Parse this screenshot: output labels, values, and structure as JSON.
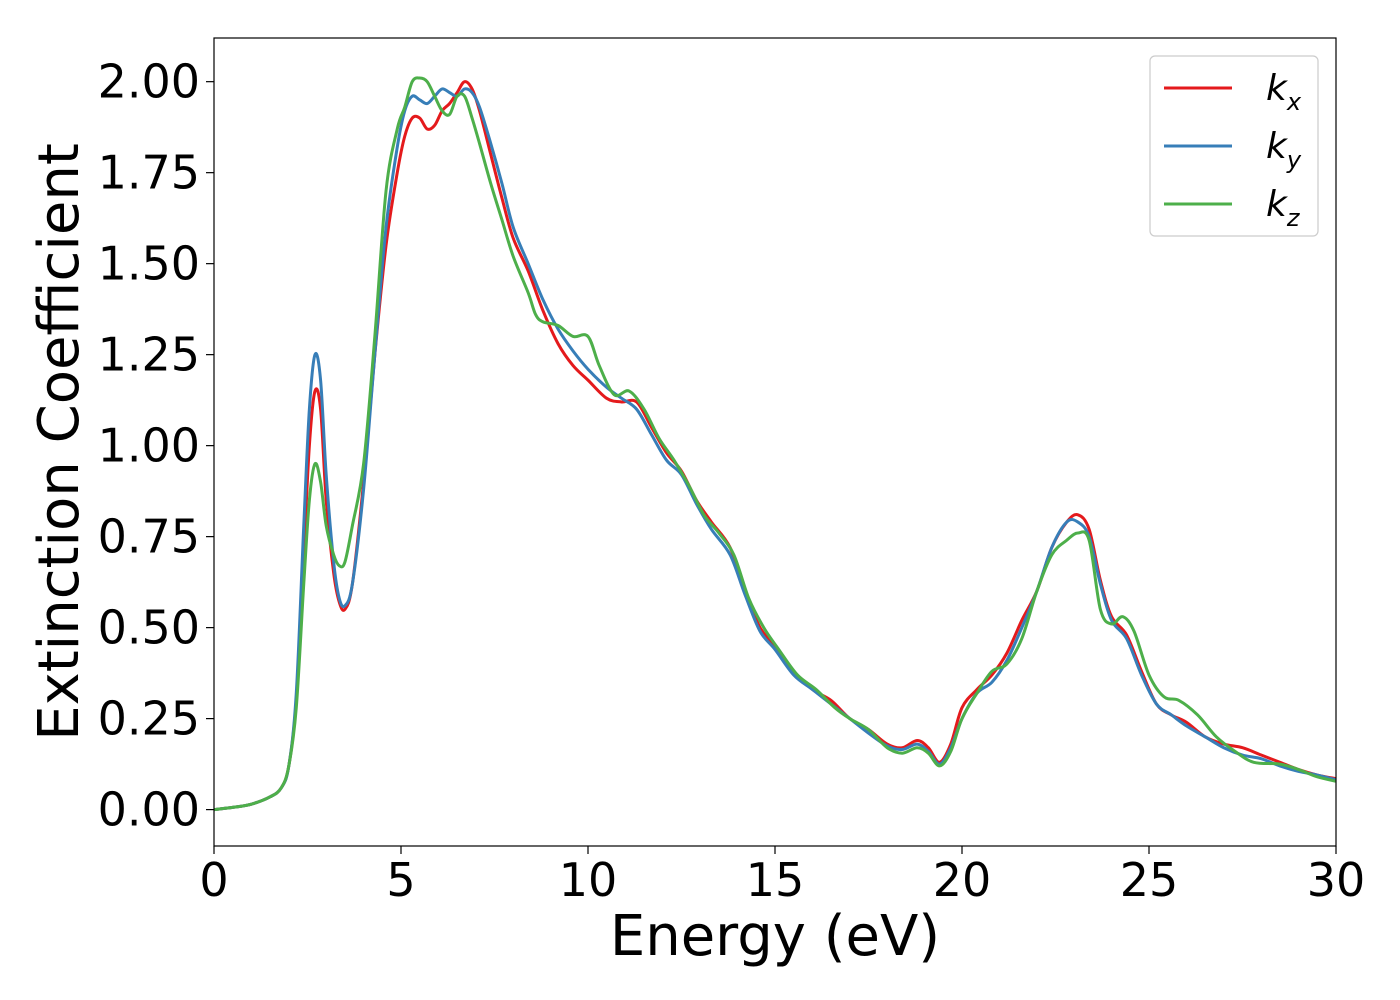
{
  "chart_data": {
    "type": "line",
    "xlabel": "Energy (eV)",
    "ylabel": "Extinction Coefficient",
    "xlim": [
      0,
      30
    ],
    "ylim": [
      -0.1,
      2.12
    ],
    "xticks": [
      "0",
      "5",
      "10",
      "15",
      "20",
      "25",
      "30"
    ],
    "yticks": [
      "0.00",
      "0.25",
      "0.50",
      "0.75",
      "1.00",
      "1.25",
      "1.50",
      "1.75",
      "2.00"
    ],
    "grid": false,
    "legend_position": "top-right",
    "series": [
      {
        "name": "k",
        "subscript": "x",
        "color": "#e41a1c",
        "points": [
          [
            0,
            0
          ],
          [
            0.5,
            0.006
          ],
          [
            1.0,
            0.015
          ],
          [
            1.5,
            0.035
          ],
          [
            1.8,
            0.06
          ],
          [
            2.0,
            0.12
          ],
          [
            2.2,
            0.3
          ],
          [
            2.4,
            0.7
          ],
          [
            2.55,
            1.0
          ],
          [
            2.7,
            1.15
          ],
          [
            2.85,
            1.1
          ],
          [
            3.0,
            0.85
          ],
          [
            3.2,
            0.65
          ],
          [
            3.35,
            0.57
          ],
          [
            3.5,
            0.55
          ],
          [
            3.7,
            0.62
          ],
          [
            4.0,
            0.9
          ],
          [
            4.3,
            1.25
          ],
          [
            4.6,
            1.55
          ],
          [
            4.9,
            1.75
          ],
          [
            5.1,
            1.85
          ],
          [
            5.3,
            1.9
          ],
          [
            5.5,
            1.9
          ],
          [
            5.7,
            1.87
          ],
          [
            5.9,
            1.88
          ],
          [
            6.1,
            1.92
          ],
          [
            6.3,
            1.94
          ],
          [
            6.5,
            1.97
          ],
          [
            6.7,
            2.0
          ],
          [
            6.9,
            1.98
          ],
          [
            7.1,
            1.92
          ],
          [
            7.4,
            1.8
          ],
          [
            7.7,
            1.68
          ],
          [
            8.0,
            1.57
          ],
          [
            8.4,
            1.48
          ],
          [
            8.8,
            1.37
          ],
          [
            9.2,
            1.28
          ],
          [
            9.6,
            1.22
          ],
          [
            10.0,
            1.18
          ],
          [
            10.5,
            1.13
          ],
          [
            10.9,
            1.12
          ],
          [
            11.3,
            1.12
          ],
          [
            11.7,
            1.05
          ],
          [
            12.1,
            0.98
          ],
          [
            12.5,
            0.93
          ],
          [
            12.9,
            0.85
          ],
          [
            13.3,
            0.79
          ],
          [
            13.8,
            0.72
          ],
          [
            14.2,
            0.6
          ],
          [
            14.6,
            0.5
          ],
          [
            15.0,
            0.45
          ],
          [
            15.5,
            0.38
          ],
          [
            16.0,
            0.33
          ],
          [
            16.5,
            0.3
          ],
          [
            17.0,
            0.25
          ],
          [
            17.5,
            0.22
          ],
          [
            18.0,
            0.18
          ],
          [
            18.4,
            0.17
          ],
          [
            18.8,
            0.19
          ],
          [
            19.1,
            0.17
          ],
          [
            19.4,
            0.13
          ],
          [
            19.7,
            0.18
          ],
          [
            20.0,
            0.28
          ],
          [
            20.4,
            0.33
          ],
          [
            20.8,
            0.37
          ],
          [
            21.2,
            0.43
          ],
          [
            21.6,
            0.52
          ],
          [
            22.0,
            0.6
          ],
          [
            22.4,
            0.72
          ],
          [
            22.8,
            0.79
          ],
          [
            23.1,
            0.81
          ],
          [
            23.4,
            0.77
          ],
          [
            23.7,
            0.63
          ],
          [
            24.0,
            0.53
          ],
          [
            24.4,
            0.48
          ],
          [
            24.8,
            0.38
          ],
          [
            25.2,
            0.29
          ],
          [
            25.6,
            0.26
          ],
          [
            26.0,
            0.24
          ],
          [
            26.5,
            0.2
          ],
          [
            27.0,
            0.18
          ],
          [
            27.5,
            0.17
          ],
          [
            28.0,
            0.15
          ],
          [
            28.5,
            0.13
          ],
          [
            29.0,
            0.11
          ],
          [
            29.5,
            0.095
          ],
          [
            30.0,
            0.085
          ]
        ]
      },
      {
        "name": "k",
        "subscript": "y",
        "color": "#377eb8",
        "points": [
          [
            0,
            0
          ],
          [
            0.5,
            0.006
          ],
          [
            1.0,
            0.015
          ],
          [
            1.5,
            0.035
          ],
          [
            1.8,
            0.06
          ],
          [
            2.0,
            0.12
          ],
          [
            2.2,
            0.32
          ],
          [
            2.4,
            0.78
          ],
          [
            2.55,
            1.1
          ],
          [
            2.7,
            1.25
          ],
          [
            2.85,
            1.18
          ],
          [
            3.0,
            0.92
          ],
          [
            3.2,
            0.68
          ],
          [
            3.35,
            0.58
          ],
          [
            3.5,
            0.56
          ],
          [
            3.7,
            0.62
          ],
          [
            4.0,
            0.88
          ],
          [
            4.3,
            1.25
          ],
          [
            4.6,
            1.6
          ],
          [
            4.9,
            1.82
          ],
          [
            5.1,
            1.92
          ],
          [
            5.3,
            1.96
          ],
          [
            5.5,
            1.95
          ],
          [
            5.7,
            1.94
          ],
          [
            5.9,
            1.96
          ],
          [
            6.1,
            1.98
          ],
          [
            6.3,
            1.97
          ],
          [
            6.5,
            1.96
          ],
          [
            6.7,
            1.98
          ],
          [
            6.9,
            1.97
          ],
          [
            7.1,
            1.93
          ],
          [
            7.4,
            1.83
          ],
          [
            7.7,
            1.72
          ],
          [
            8.0,
            1.6
          ],
          [
            8.4,
            1.5
          ],
          [
            8.8,
            1.4
          ],
          [
            9.2,
            1.32
          ],
          [
            9.6,
            1.26
          ],
          [
            10.0,
            1.21
          ],
          [
            10.5,
            1.16
          ],
          [
            10.9,
            1.13
          ],
          [
            11.3,
            1.1
          ],
          [
            11.7,
            1.03
          ],
          [
            12.1,
            0.96
          ],
          [
            12.5,
            0.92
          ],
          [
            12.9,
            0.84
          ],
          [
            13.3,
            0.77
          ],
          [
            13.8,
            0.7
          ],
          [
            14.2,
            0.59
          ],
          [
            14.6,
            0.49
          ],
          [
            15.0,
            0.44
          ],
          [
            15.5,
            0.37
          ],
          [
            16.0,
            0.33
          ],
          [
            16.5,
            0.29
          ],
          [
            17.0,
            0.25
          ],
          [
            17.5,
            0.21
          ],
          [
            18.0,
            0.175
          ],
          [
            18.4,
            0.165
          ],
          [
            18.8,
            0.18
          ],
          [
            19.1,
            0.16
          ],
          [
            19.4,
            0.125
          ],
          [
            19.7,
            0.17
          ],
          [
            20.0,
            0.25
          ],
          [
            20.4,
            0.32
          ],
          [
            20.8,
            0.35
          ],
          [
            21.2,
            0.41
          ],
          [
            21.6,
            0.5
          ],
          [
            22.0,
            0.6
          ],
          [
            22.4,
            0.72
          ],
          [
            22.8,
            0.79
          ],
          [
            23.1,
            0.79
          ],
          [
            23.4,
            0.75
          ],
          [
            23.7,
            0.62
          ],
          [
            24.0,
            0.52
          ],
          [
            24.4,
            0.47
          ],
          [
            24.8,
            0.37
          ],
          [
            25.2,
            0.29
          ],
          [
            25.6,
            0.26
          ],
          [
            26.0,
            0.23
          ],
          [
            26.5,
            0.2
          ],
          [
            27.0,
            0.17
          ],
          [
            27.5,
            0.15
          ],
          [
            28.0,
            0.14
          ],
          [
            28.5,
            0.12
          ],
          [
            29.0,
            0.105
          ],
          [
            29.5,
            0.095
          ],
          [
            30.0,
            0.082
          ]
        ]
      },
      {
        "name": "k",
        "subscript": "z",
        "color": "#4daf4a",
        "points": [
          [
            0,
            0
          ],
          [
            0.5,
            0.006
          ],
          [
            1.0,
            0.015
          ],
          [
            1.5,
            0.035
          ],
          [
            1.8,
            0.06
          ],
          [
            2.0,
            0.12
          ],
          [
            2.2,
            0.28
          ],
          [
            2.4,
            0.62
          ],
          [
            2.55,
            0.85
          ],
          [
            2.7,
            0.95
          ],
          [
            2.85,
            0.9
          ],
          [
            3.0,
            0.78
          ],
          [
            3.2,
            0.7
          ],
          [
            3.35,
            0.67
          ],
          [
            3.5,
            0.68
          ],
          [
            3.7,
            0.78
          ],
          [
            4.0,
            0.95
          ],
          [
            4.3,
            1.3
          ],
          [
            4.6,
            1.7
          ],
          [
            4.9,
            1.87
          ],
          [
            5.1,
            1.93
          ],
          [
            5.3,
            2.0
          ],
          [
            5.5,
            2.01
          ],
          [
            5.7,
            2.0
          ],
          [
            5.9,
            1.96
          ],
          [
            6.1,
            1.92
          ],
          [
            6.3,
            1.91
          ],
          [
            6.5,
            1.96
          ],
          [
            6.7,
            1.96
          ],
          [
            6.9,
            1.9
          ],
          [
            7.1,
            1.83
          ],
          [
            7.4,
            1.72
          ],
          [
            7.7,
            1.62
          ],
          [
            8.0,
            1.52
          ],
          [
            8.4,
            1.42
          ],
          [
            8.6,
            1.36
          ],
          [
            8.8,
            1.34
          ],
          [
            9.2,
            1.33
          ],
          [
            9.6,
            1.3
          ],
          [
            10.0,
            1.3
          ],
          [
            10.3,
            1.22
          ],
          [
            10.7,
            1.14
          ],
          [
            11.1,
            1.15
          ],
          [
            11.5,
            1.1
          ],
          [
            11.9,
            1.02
          ],
          [
            12.3,
            0.96
          ],
          [
            12.7,
            0.89
          ],
          [
            13.1,
            0.81
          ],
          [
            13.5,
            0.76
          ],
          [
            13.9,
            0.7
          ],
          [
            14.3,
            0.58
          ],
          [
            14.7,
            0.5
          ],
          [
            15.1,
            0.44
          ],
          [
            15.6,
            0.37
          ],
          [
            16.1,
            0.33
          ],
          [
            16.6,
            0.28
          ],
          [
            17.0,
            0.25
          ],
          [
            17.5,
            0.22
          ],
          [
            18.0,
            0.17
          ],
          [
            18.4,
            0.155
          ],
          [
            18.8,
            0.17
          ],
          [
            19.1,
            0.155
          ],
          [
            19.4,
            0.12
          ],
          [
            19.7,
            0.16
          ],
          [
            20.0,
            0.25
          ],
          [
            20.4,
            0.32
          ],
          [
            20.8,
            0.38
          ],
          [
            21.2,
            0.4
          ],
          [
            21.6,
            0.47
          ],
          [
            22.0,
            0.6
          ],
          [
            22.4,
            0.7
          ],
          [
            22.8,
            0.74
          ],
          [
            23.1,
            0.76
          ],
          [
            23.4,
            0.74
          ],
          [
            23.7,
            0.55
          ],
          [
            24.0,
            0.51
          ],
          [
            24.3,
            0.53
          ],
          [
            24.6,
            0.49
          ],
          [
            25.0,
            0.37
          ],
          [
            25.4,
            0.31
          ],
          [
            25.8,
            0.3
          ],
          [
            26.3,
            0.26
          ],
          [
            26.8,
            0.2
          ],
          [
            27.3,
            0.16
          ],
          [
            27.8,
            0.13
          ],
          [
            28.5,
            0.125
          ],
          [
            29.0,
            0.11
          ],
          [
            29.5,
            0.09
          ],
          [
            30.0,
            0.078
          ]
        ]
      }
    ]
  }
}
